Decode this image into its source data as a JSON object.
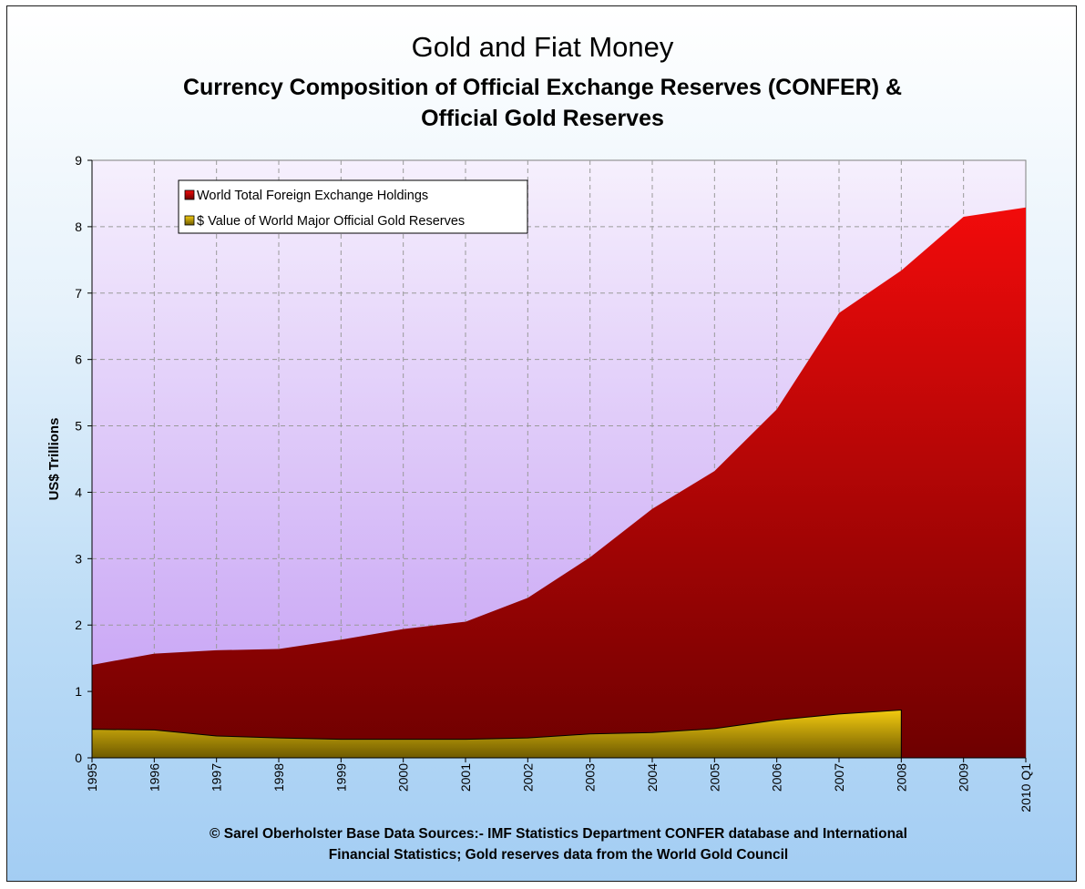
{
  "header": {
    "title": "Gold and Fiat Money",
    "subtitle_line1": "Currency Composition of Official Exchange Reserves (CONFER) &",
    "subtitle_line2": "Official Gold Reserves"
  },
  "footer": {
    "source_line1": "© Sarel Oberholster     Base Data Sources:- IMF Statistics Department CONFER database and International",
    "source_line2": "Financial Statistics; Gold reserves data from the World Gold Council"
  },
  "colors": {
    "fx_top": "#f20b0b",
    "fx_bottom": "#6e0000",
    "gold_top": "#f5cc10",
    "gold_bottom": "#6e5a00",
    "plot_top": "#f6f0fd",
    "plot_bottom": "#c39cf4"
  },
  "chart_data": {
    "type": "area",
    "title": "Gold and Fiat Money",
    "xlabel": "",
    "ylabel": "US$ Trillions",
    "ylim": [
      0,
      9
    ],
    "y_ticks": [
      "0",
      "1",
      "2",
      "3",
      "4",
      "5",
      "6",
      "7",
      "8",
      "9"
    ],
    "grid": true,
    "legend_position": "top-left",
    "categories": [
      "1995",
      "1996",
      "1997",
      "1998",
      "1999",
      "2000",
      "2001",
      "2002",
      "2003",
      "2004",
      "2005",
      "2006",
      "2007",
      "2008",
      "2009",
      "2010 Q1"
    ],
    "series": [
      {
        "name": "World Total Foreign Exchange Holdings",
        "values": [
          1.4,
          1.57,
          1.62,
          1.64,
          1.78,
          1.94,
          2.05,
          2.41,
          3.02,
          3.75,
          4.32,
          5.25,
          6.7,
          7.34,
          8.15,
          8.29
        ]
      },
      {
        "name": "$ Value of World Major Official Gold Reserves",
        "values": [
          0.43,
          0.42,
          0.33,
          0.3,
          0.28,
          0.28,
          0.28,
          0.3,
          0.36,
          0.38,
          0.44,
          0.57,
          0.66,
          0.72,
          null,
          null
        ]
      }
    ]
  }
}
